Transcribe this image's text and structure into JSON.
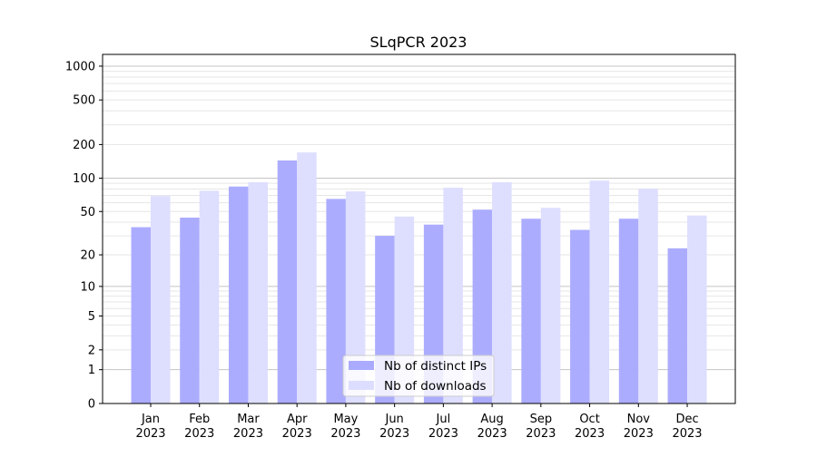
{
  "chart_data": {
    "type": "bar",
    "title": "SLqPCR 2023",
    "xlabel": "",
    "ylabel": "",
    "yscale": "log(1+x)",
    "ylim": [
      0,
      1300
    ],
    "yticks": [
      0,
      1,
      2,
      5,
      10,
      20,
      50,
      100,
      200,
      500,
      1000
    ],
    "ytick_labels": [
      "0",
      "1",
      "2",
      "5",
      "10",
      "20",
      "50",
      "100",
      "200",
      "500",
      "1000"
    ],
    "grid": true,
    "legend_position": "bottom-center",
    "categories": [
      "Jan\n2023",
      "Feb\n2023",
      "Mar\n2023",
      "Apr\n2023",
      "May\n2023",
      "Jun\n2023",
      "Jul\n2023",
      "Aug\n2023",
      "Sep\n2023",
      "Oct\n2023",
      "Nov\n2023",
      "Dec\n2023"
    ],
    "series": [
      {
        "name": "Nb of distinct IPs",
        "color": "#aaaaff",
        "values": [
          36,
          44,
          84,
          144,
          65,
          30,
          38,
          52,
          43,
          34,
          43,
          23
        ]
      },
      {
        "name": "Nb of downloads",
        "color": "#ddddff",
        "values": [
          69,
          77,
          92,
          170,
          76,
          45,
          82,
          92,
          54,
          95,
          80,
          46
        ]
      }
    ]
  }
}
